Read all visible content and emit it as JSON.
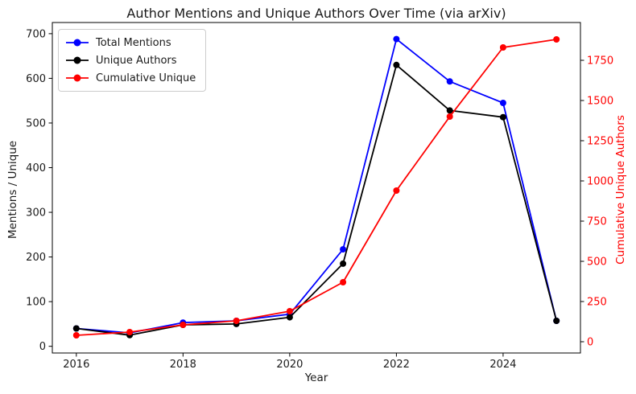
{
  "chart_data": {
    "type": "line",
    "title": "Author Mentions and Unique Authors Over Time (via arXiv)",
    "xlabel": "Year",
    "ylabel_left": "Mentions / Unique",
    "ylabel_right": "Cumulative Unique Authors",
    "grid": false,
    "legend_position": "upper-left",
    "x": [
      2016,
      2017,
      2018,
      2019,
      2020,
      2021,
      2022,
      2023,
      2024,
      2025
    ],
    "x_ticks": [
      2016,
      2018,
      2020,
      2022,
      2024
    ],
    "x_range": [
      2015.55,
      2025.45
    ],
    "left_axis": {
      "label": "Mentions / Unique",
      "ticks": [
        0,
        100,
        200,
        300,
        400,
        500,
        600,
        700
      ],
      "range": [
        -15,
        725
      ],
      "color": "#000000"
    },
    "right_axis": {
      "label": "Cumulative Unique Authors",
      "ticks": [
        0,
        250,
        500,
        750,
        1000,
        1250,
        1500,
        1750
      ],
      "range": [
        -70,
        1985
      ],
      "color": "#ff0000"
    },
    "series": [
      {
        "name": "Total Mentions",
        "axis": "left",
        "color": "#0000ff",
        "values": [
          40,
          30,
          53,
          57,
          72,
          217,
          688,
          593,
          545,
          57
        ]
      },
      {
        "name": "Unique Authors",
        "axis": "left",
        "color": "#000000",
        "values": [
          40,
          25,
          48,
          50,
          65,
          185,
          630,
          528,
          513,
          57
        ]
      },
      {
        "name": "Cumulative Unique",
        "axis": "right",
        "color": "#ff0000",
        "values": [
          40,
          60,
          105,
          130,
          190,
          370,
          940,
          1400,
          1830,
          1880
        ]
      }
    ]
  }
}
